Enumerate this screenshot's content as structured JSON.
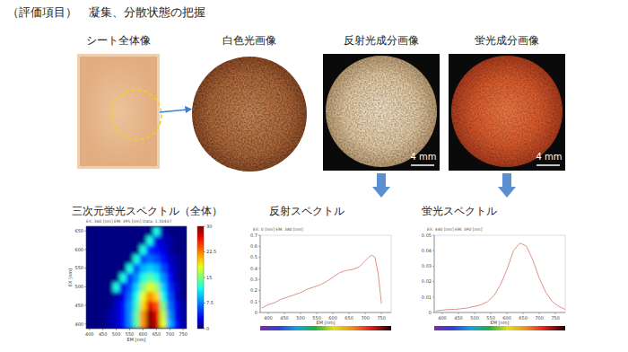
{
  "header": {
    "title": "（評価項目）　凝集、分散状態の把握"
  },
  "images": [
    {
      "label": "シート全体像"
    },
    {
      "label": "白色光画像"
    },
    {
      "label": "反射光成分画像",
      "scale_bar": "4 mm"
    },
    {
      "label": "蛍光成分画像",
      "scale_bar": "4 mm"
    }
  ],
  "chart_data": [
    {
      "type": "heatmap",
      "title": "三次元蛍光スペクトル（全体）",
      "subtitle": "EX: 360 [nm] EM: 395 [nm] Data: 1.10437",
      "xlabel": "EM [nm]",
      "ylabel": "EX [nm]",
      "x": [
        400,
        425,
        450,
        475,
        500,
        525,
        550,
        575,
        600,
        625,
        650,
        675,
        700,
        725,
        750
      ],
      "y": [
        400,
        425,
        450,
        475,
        500,
        525,
        550,
        575,
        600,
        625,
        650
      ],
      "cells": [
        [
          0,
          0,
          0,
          1,
          2,
          4,
          8,
          14,
          22,
          30,
          28,
          18,
          9,
          4,
          1
        ],
        [
          0,
          0,
          0,
          1,
          2,
          4,
          8,
          14,
          22,
          30,
          27,
          17,
          8,
          3,
          1
        ],
        [
          0,
          0,
          0,
          0,
          2,
          4,
          8,
          13,
          20,
          27,
          24,
          15,
          7,
          3,
          1
        ],
        [
          0,
          0,
          0,
          0,
          1,
          3,
          7,
          12,
          18,
          22,
          20,
          12,
          6,
          2,
          0
        ],
        [
          0,
          0,
          0,
          0,
          12,
          3,
          6,
          10,
          15,
          18,
          16,
          10,
          5,
          2,
          0
        ],
        [
          0,
          0,
          0,
          0,
          0,
          12,
          5,
          8,
          12,
          14,
          12,
          8,
          4,
          1,
          0
        ],
        [
          0,
          0,
          0,
          0,
          0,
          0,
          12,
          6,
          9,
          10,
          9,
          6,
          3,
          1,
          0
        ],
        [
          0,
          0,
          0,
          0,
          0,
          0,
          0,
          12,
          6,
          7,
          6,
          4,
          2,
          1,
          0
        ],
        [
          0,
          0,
          0,
          0,
          0,
          0,
          0,
          0,
          12,
          5,
          4,
          3,
          1,
          0,
          0
        ],
        [
          0,
          0,
          0,
          0,
          0,
          0,
          0,
          0,
          0,
          12,
          3,
          2,
          1,
          0,
          0
        ],
        [
          0,
          0,
          0,
          0,
          0,
          0,
          0,
          0,
          0,
          0,
          12,
          1,
          0,
          0,
          0
        ]
      ],
      "xlim": [
        387.5,
        762.5
      ],
      "ylim": [
        387.5,
        662.5
      ],
      "xticks": [
        400,
        450,
        500,
        550,
        600,
        650,
        700,
        750
      ],
      "yticks": [
        400,
        450,
        500,
        550,
        600,
        650
      ],
      "colorbar_range": [
        0,
        30
      ],
      "colorbar_ticks": [
        0,
        7.5,
        15,
        22.5,
        30
      ]
    },
    {
      "type": "line",
      "title": "反射スペクトル",
      "subtitle": "EX: 0 [nm] EM: 380 [nm]",
      "xlabel": "EM [nm]",
      "x": [
        380,
        400,
        420,
        440,
        460,
        480,
        500,
        520,
        540,
        560,
        580,
        600,
        620,
        640,
        660,
        680,
        700,
        710,
        720,
        730,
        740,
        750
      ],
      "values": [
        0.04,
        0.07,
        0.09,
        0.12,
        0.14,
        0.16,
        0.18,
        0.21,
        0.23,
        0.25,
        0.28,
        0.32,
        0.36,
        0.38,
        0.39,
        0.41,
        0.47,
        0.5,
        0.52,
        0.5,
        0.35,
        0.08
      ],
      "color": "#e2908a",
      "xlim": [
        375,
        780
      ],
      "ylim": [
        0,
        0.7
      ],
      "xticks": [
        400,
        450,
        500,
        550,
        600,
        650,
        700,
        750
      ],
      "yticks": [
        0,
        0.1,
        0.2,
        0.3,
        0.4,
        0.5,
        0.6,
        0.7
      ],
      "grid": false
    },
    {
      "type": "line",
      "title": "蛍光スペクトル",
      "subtitle": "EX: 440 [nm] EM: 390 [nm]",
      "xlabel": "EM [nm]",
      "x": [
        380,
        400,
        420,
        440,
        460,
        480,
        500,
        520,
        540,
        560,
        580,
        600,
        620,
        640,
        660,
        680,
        700,
        720,
        740,
        760,
        780
      ],
      "values": [
        0.001,
        0.0015,
        0.002,
        0.002,
        0.0025,
        0.003,
        0.004,
        0.005,
        0.007,
        0.011,
        0.018,
        0.028,
        0.04,
        0.045,
        0.043,
        0.034,
        0.022,
        0.013,
        0.007,
        0.004,
        0.002
      ],
      "color": "#e2908a",
      "xlim": [
        375,
        780
      ],
      "ylim": [
        0,
        0.05
      ],
      "xticks": [
        400,
        450,
        500,
        550,
        600,
        650,
        700,
        750
      ],
      "yticks": [
        0,
        0.01,
        0.02,
        0.03,
        0.04,
        0.05
      ],
      "grid": false
    }
  ]
}
